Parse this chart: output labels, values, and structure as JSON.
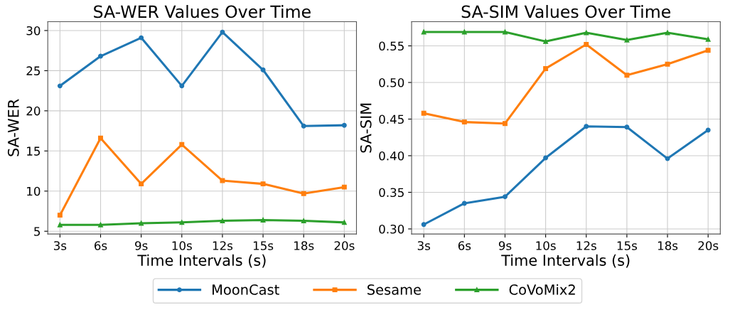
{
  "chart_data": [
    {
      "type": "line",
      "title": "SA-WER Values Over Time",
      "xlabel": "Time Intervals (s)",
      "ylabel": "SA-WER",
      "categories": [
        "3s",
        "6s",
        "9s",
        "10s",
        "12s",
        "15s",
        "18s",
        "20s"
      ],
      "series": [
        {
          "name": "MoonCast",
          "color": "#1f77b4",
          "marker": "circle",
          "values": [
            23.1,
            26.8,
            29.1,
            23.1,
            29.8,
            25.1,
            18.1,
            18.2
          ]
        },
        {
          "name": "Sesame",
          "color": "#ff7f0e",
          "marker": "square",
          "values": [
            7.0,
            16.6,
            10.9,
            15.8,
            11.3,
            10.9,
            9.7,
            10.5
          ]
        },
        {
          "name": "CoVoMix2",
          "color": "#2ca02c",
          "marker": "triangle",
          "values": [
            5.8,
            5.8,
            6.0,
            6.1,
            6.3,
            6.4,
            6.3,
            6.1
          ]
        }
      ],
      "ylim": [
        4.65,
        31.1
      ],
      "yticks": [
        5,
        10,
        15,
        20,
        25,
        30
      ],
      "grid": true,
      "legend": "bottom",
      "line_style": "solid"
    },
    {
      "type": "line",
      "title": "SA-SIM Values Over Time",
      "xlabel": "Time Intervals (s)",
      "ylabel": "SA-SIM",
      "categories": [
        "3s",
        "6s",
        "9s",
        "10s",
        "12s",
        "15s",
        "18s",
        "20s"
      ],
      "series": [
        {
          "name": "MoonCast",
          "color": "#1f77b4",
          "marker": "circle",
          "values": [
            0.306,
            0.335,
            0.344,
            0.397,
            0.44,
            0.439,
            0.396,
            0.435
          ]
        },
        {
          "name": "Sesame",
          "color": "#ff7f0e",
          "marker": "square",
          "values": [
            0.458,
            0.446,
            0.444,
            0.519,
            0.552,
            0.51,
            0.525,
            0.544
          ]
        },
        {
          "name": "CoVoMix2",
          "color": "#2ca02c",
          "marker": "triangle",
          "values": [
            0.569,
            0.569,
            0.569,
            0.556,
            0.568,
            0.558,
            0.568,
            0.559
          ]
        }
      ],
      "ylim": [
        0.293,
        0.583
      ],
      "yticks": [
        {
          "value": 0.3,
          "label": "0.30"
        },
        {
          "value": 0.35,
          "label": "0.35"
        },
        {
          "value": 0.4,
          "label": "0.40"
        },
        {
          "value": 0.45,
          "label": "0.45"
        },
        {
          "value": 0.5,
          "label": "0.50"
        },
        {
          "value": 0.55,
          "label": "0.55"
        }
      ],
      "grid": true,
      "legend": "bottom",
      "line_style": "solid"
    }
  ]
}
